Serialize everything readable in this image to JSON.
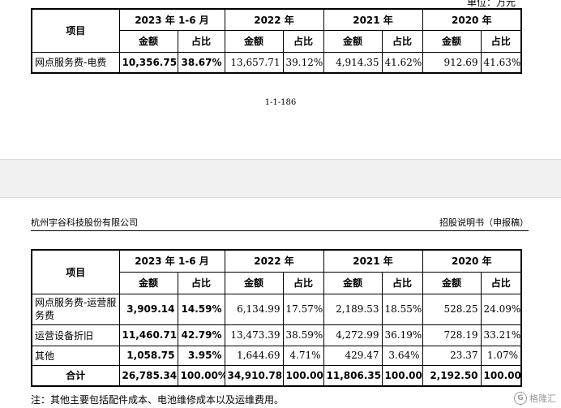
{
  "top": {
    "unit_label": "单位：万元",
    "headers": {
      "item": "项目",
      "periods": [
        "2023 年 1-6 月",
        "2022 年",
        "2021 年",
        "2020 年"
      ],
      "amount": "金额",
      "ratio": "占比"
    },
    "rows": [
      {
        "label": "网点服务费-电费",
        "values": [
          "10,356.75",
          "38.67%",
          "13,657.71",
          "39.12%",
          "4,914.35",
          "41.62%",
          "912.69",
          "41.63%"
        ]
      }
    ],
    "page_number": "1-1-186"
  },
  "bottom": {
    "company": "杭州宇谷科技股份有限公司",
    "doc_title": "招股说明书（申报稿）",
    "headers": {
      "item": "项目",
      "periods": [
        "2023 年 1-6 月",
        "2022 年",
        "2021 年",
        "2020 年"
      ],
      "amount": "金额",
      "ratio": "占比"
    },
    "rows": [
      {
        "label": "网点服务费-运营服务费",
        "values": [
          "3,909.14",
          "14.59%",
          "6,134.99",
          "17.57%",
          "2,189.53",
          "18.55%",
          "528.25",
          "24.09%"
        ]
      },
      {
        "label": "运营设备折旧",
        "values": [
          "11,460.71",
          "42.79%",
          "13,473.39",
          "38.59%",
          "4,272.99",
          "36.19%",
          "728.19",
          "33.21%"
        ]
      },
      {
        "label": "其他",
        "values": [
          "1,058.75",
          "3.95%",
          "1,644.69",
          "4.71%",
          "429.47",
          "3.64%",
          "23.37",
          "1.07%"
        ]
      }
    ],
    "total": {
      "label": "合计",
      "values": [
        "26,785.34",
        "100.00%",
        "34,910.78",
        "100.00%",
        "11,806.35",
        "100.00%",
        "2,192.50",
        "100.00%"
      ]
    },
    "note": "注：其他主要包括配件成本、电池维修成本以及运维费用。"
  },
  "watermark": {
    "logo": "G",
    "text": "格隆汇"
  }
}
